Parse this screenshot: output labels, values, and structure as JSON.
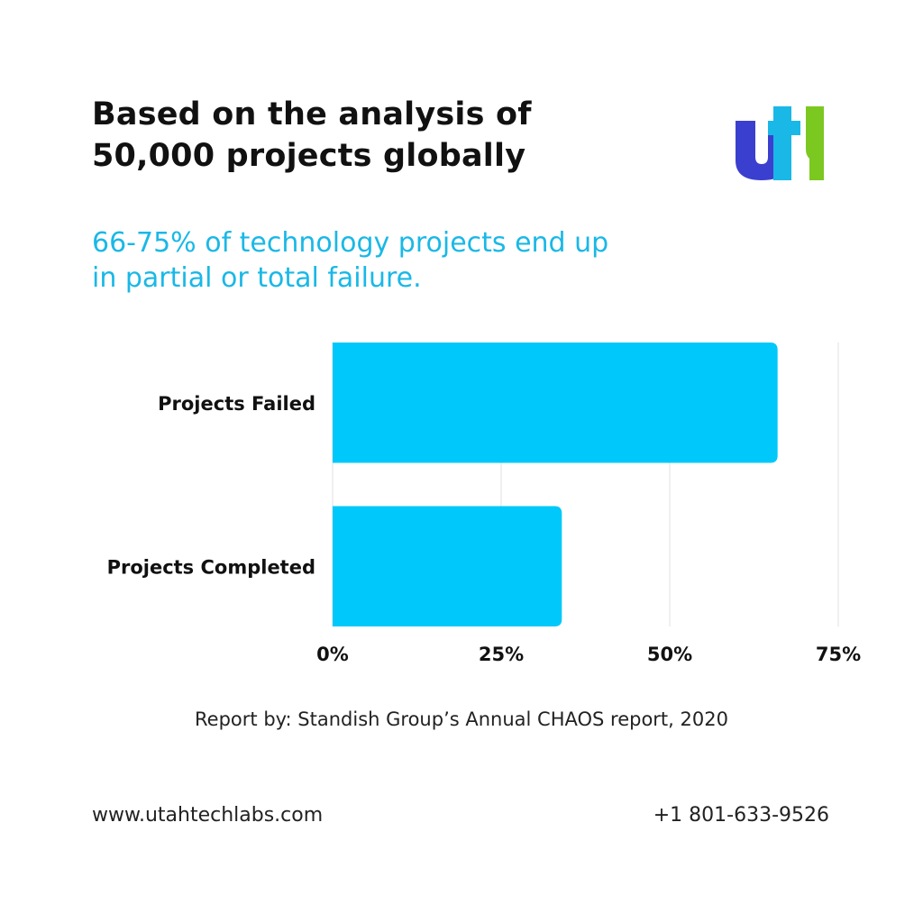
{
  "header": {
    "title_line1": "Based on the analysis of",
    "title_line2": "50,000 projects globally",
    "subtitle_line1": "66-75% of technology projects end up",
    "subtitle_line2": "in partial or total failure."
  },
  "logo": {
    "text": "utl",
    "colors": [
      "#3b3fd0",
      "#1ab8e6",
      "#7bc820"
    ]
  },
  "chart_data": {
    "type": "bar",
    "orientation": "horizontal",
    "categories": [
      "Projects Failed",
      "Projects Completed"
    ],
    "values": [
      66,
      34
    ],
    "xlim": [
      0,
      75
    ],
    "xticks": [
      0,
      25,
      50,
      75
    ],
    "xtick_labels": [
      "0%",
      "25%",
      "50%",
      "75%"
    ],
    "grid": true,
    "bar_color": "#00c8fa"
  },
  "source": "Report by: Standish Group’s Annual CHAOS report, 2020",
  "footer": {
    "website": "www.utahtechlabs.com",
    "phone": "+1 801-633-9526"
  }
}
